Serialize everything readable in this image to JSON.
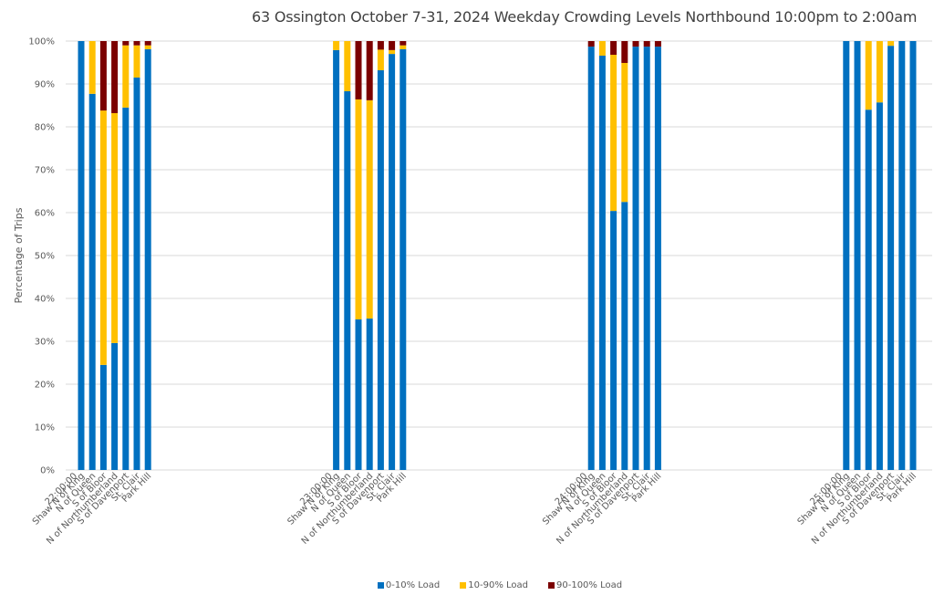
{
  "chart_data": {
    "type": "bar",
    "stacked": true,
    "title": "63 Ossington October 7-31, 2024  Weekday Crowding Levels Northbound 10:00pm to 2:00am",
    "xlabel": "",
    "ylabel": "Percentage of Trips",
    "ylim": [
      0,
      100
    ],
    "yticks": [
      "0%",
      "10%",
      "20%",
      "30%",
      "40%",
      "50%",
      "60%",
      "70%",
      "80%",
      "90%",
      "100%"
    ],
    "grid": true,
    "legend_position": "bottom",
    "groups": [
      "22:00:00",
      "23:00:00",
      "24:00:00",
      "25:00:00"
    ],
    "categories": [
      "Shaw N of King",
      "N of Queen",
      "S of Bloor",
      "N of Northumberland",
      "S of Davenport",
      "St. Clair",
      "Park Hill"
    ],
    "series": [
      {
        "name": "0-10% Load",
        "color": "#0070C0",
        "values": [
          [
            100,
            87.7,
            24.5,
            29.6,
            84.5,
            91.5,
            98.1
          ],
          [
            97.9,
            88.3,
            35.1,
            35.3,
            93.2,
            97.0,
            98.1
          ],
          [
            98.7,
            96.6,
            60.4,
            62.5,
            98.7,
            98.7,
            98.7
          ],
          [
            100,
            100,
            84.0,
            85.7,
            98.9,
            100,
            100
          ]
        ]
      },
      {
        "name": "10-90% Load",
        "color": "#FFC000",
        "values": [
          [
            0,
            12.3,
            59.3,
            53.6,
            14.5,
            7.5,
            0.9
          ],
          [
            2.1,
            11.7,
            51.3,
            50.9,
            4.8,
            0.9,
            0.9
          ],
          [
            0,
            3.4,
            36.4,
            32.4,
            0,
            0,
            0
          ],
          [
            0,
            0,
            16.0,
            14.3,
            1.1,
            0,
            0
          ]
        ]
      },
      {
        "name": "90-100% Load",
        "color": "#7B0000",
        "values": [
          [
            0,
            0,
            16.2,
            16.8,
            1.0,
            1.0,
            1.0
          ],
          [
            0,
            0,
            13.6,
            13.8,
            2.0,
            2.1,
            1.0
          ],
          [
            1.3,
            0,
            3.2,
            5.1,
            1.3,
            1.3,
            1.3
          ],
          [
            0,
            0,
            0,
            0,
            0,
            0,
            0
          ]
        ]
      }
    ]
  }
}
